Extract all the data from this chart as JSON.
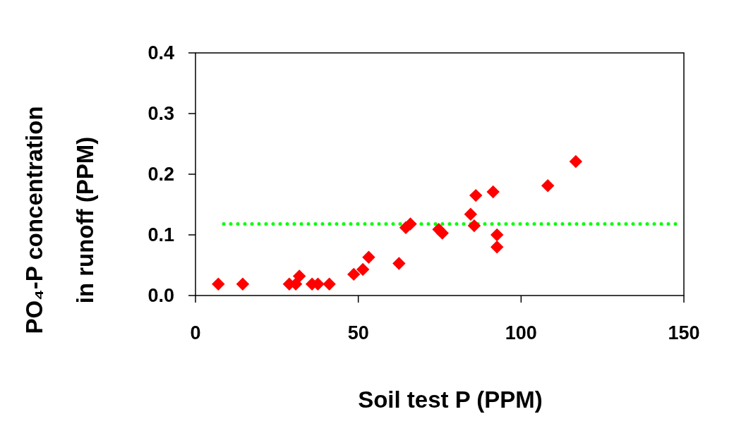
{
  "chart_data": {
    "type": "scatter",
    "xlabel": "Soil test P (PPM)",
    "ylabel": "PO₄-P concentration\nin runoff  (PPM)",
    "x": [
      7.0,
      14.5,
      28.8,
      30.8,
      31.9,
      35.8,
      37.6,
      41.1,
      48.6,
      51.4,
      53.2,
      62.5,
      64.6,
      66.0,
      74.7,
      75.8,
      84.5,
      85.6,
      86.1,
      91.4,
      92.6,
      92.6,
      108.2,
      116.8
    ],
    "series": [
      {
        "color": "#ff0000",
        "values": [
          0.019,
          0.019,
          0.019,
          0.019,
          0.032,
          0.019,
          0.019,
          0.019,
          0.035,
          0.043,
          0.063,
          0.053,
          0.112,
          0.118,
          0.109,
          0.103,
          0.134,
          0.115,
          0.165,
          0.171,
          0.1,
          0.08,
          0.181,
          0.221
        ]
      }
    ],
    "marker": "diamond",
    "xlim": [
      0,
      150
    ],
    "xticks": [
      0,
      50,
      100,
      150
    ],
    "ylim": [
      0,
      0.4
    ],
    "yticks": [
      {
        "value": 0,
        "label": "0.0"
      },
      {
        "value": 0.1,
        "label": "0.1"
      },
      {
        "value": 0.2,
        "label": "0.2"
      },
      {
        "value": 0.3,
        "label": "0.3"
      },
      {
        "value": 0.4,
        "label": "0.4"
      }
    ],
    "ref_lines": [
      {
        "axis": "y",
        "value": 0.118,
        "color": "#00ff00",
        "line_style": "dotted"
      }
    ],
    "grid": false
  }
}
